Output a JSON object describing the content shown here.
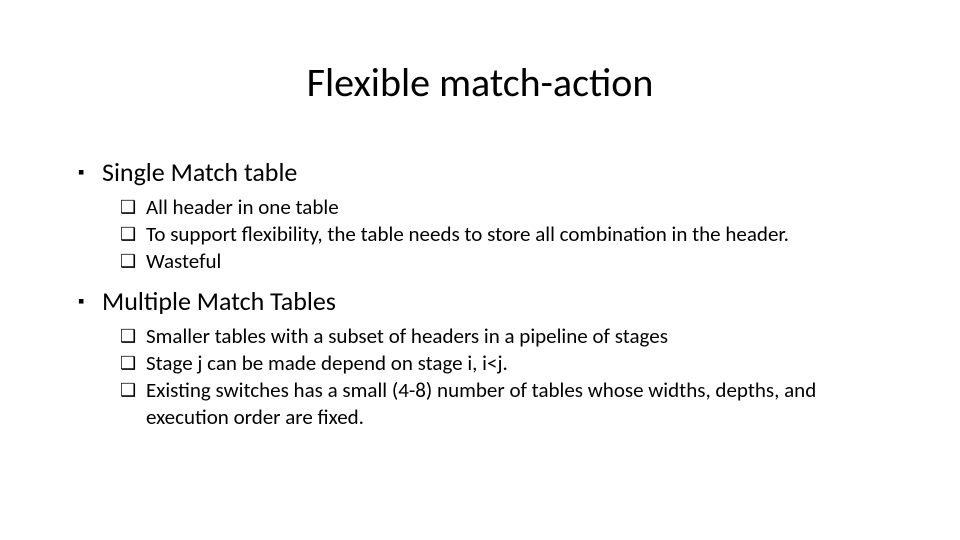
{
  "slide": {
    "title": "Flexible match-action",
    "bullets": {
      "level1": [
        {
          "text": "Single Match table"
        },
        {
          "text": "Multiple Match Tables"
        }
      ],
      "group0": [
        {
          "text": "All header in one table"
        },
        {
          "text": "To support flexibility, the table needs to store all combination in the header."
        },
        {
          "text": "Wasteful"
        }
      ],
      "group1": [
        {
          "text": "Smaller tables with a subset of headers in a pipeline of stages"
        },
        {
          "text": "Stage j can be made depend on stage i, i<j."
        },
        {
          "text": "Existing switches has a small (4-8) number of tables whose widths, depths, and execution order are fixed."
        }
      ]
    },
    "markers": {
      "square": "▪",
      "hollow_square": "❑"
    },
    "style": {
      "background": "#ffffff",
      "text_color": "#000000",
      "title_fontsize": 40,
      "l1_fontsize": 26,
      "l2_fontsize": 21,
      "font_family": "Calibri"
    }
  }
}
